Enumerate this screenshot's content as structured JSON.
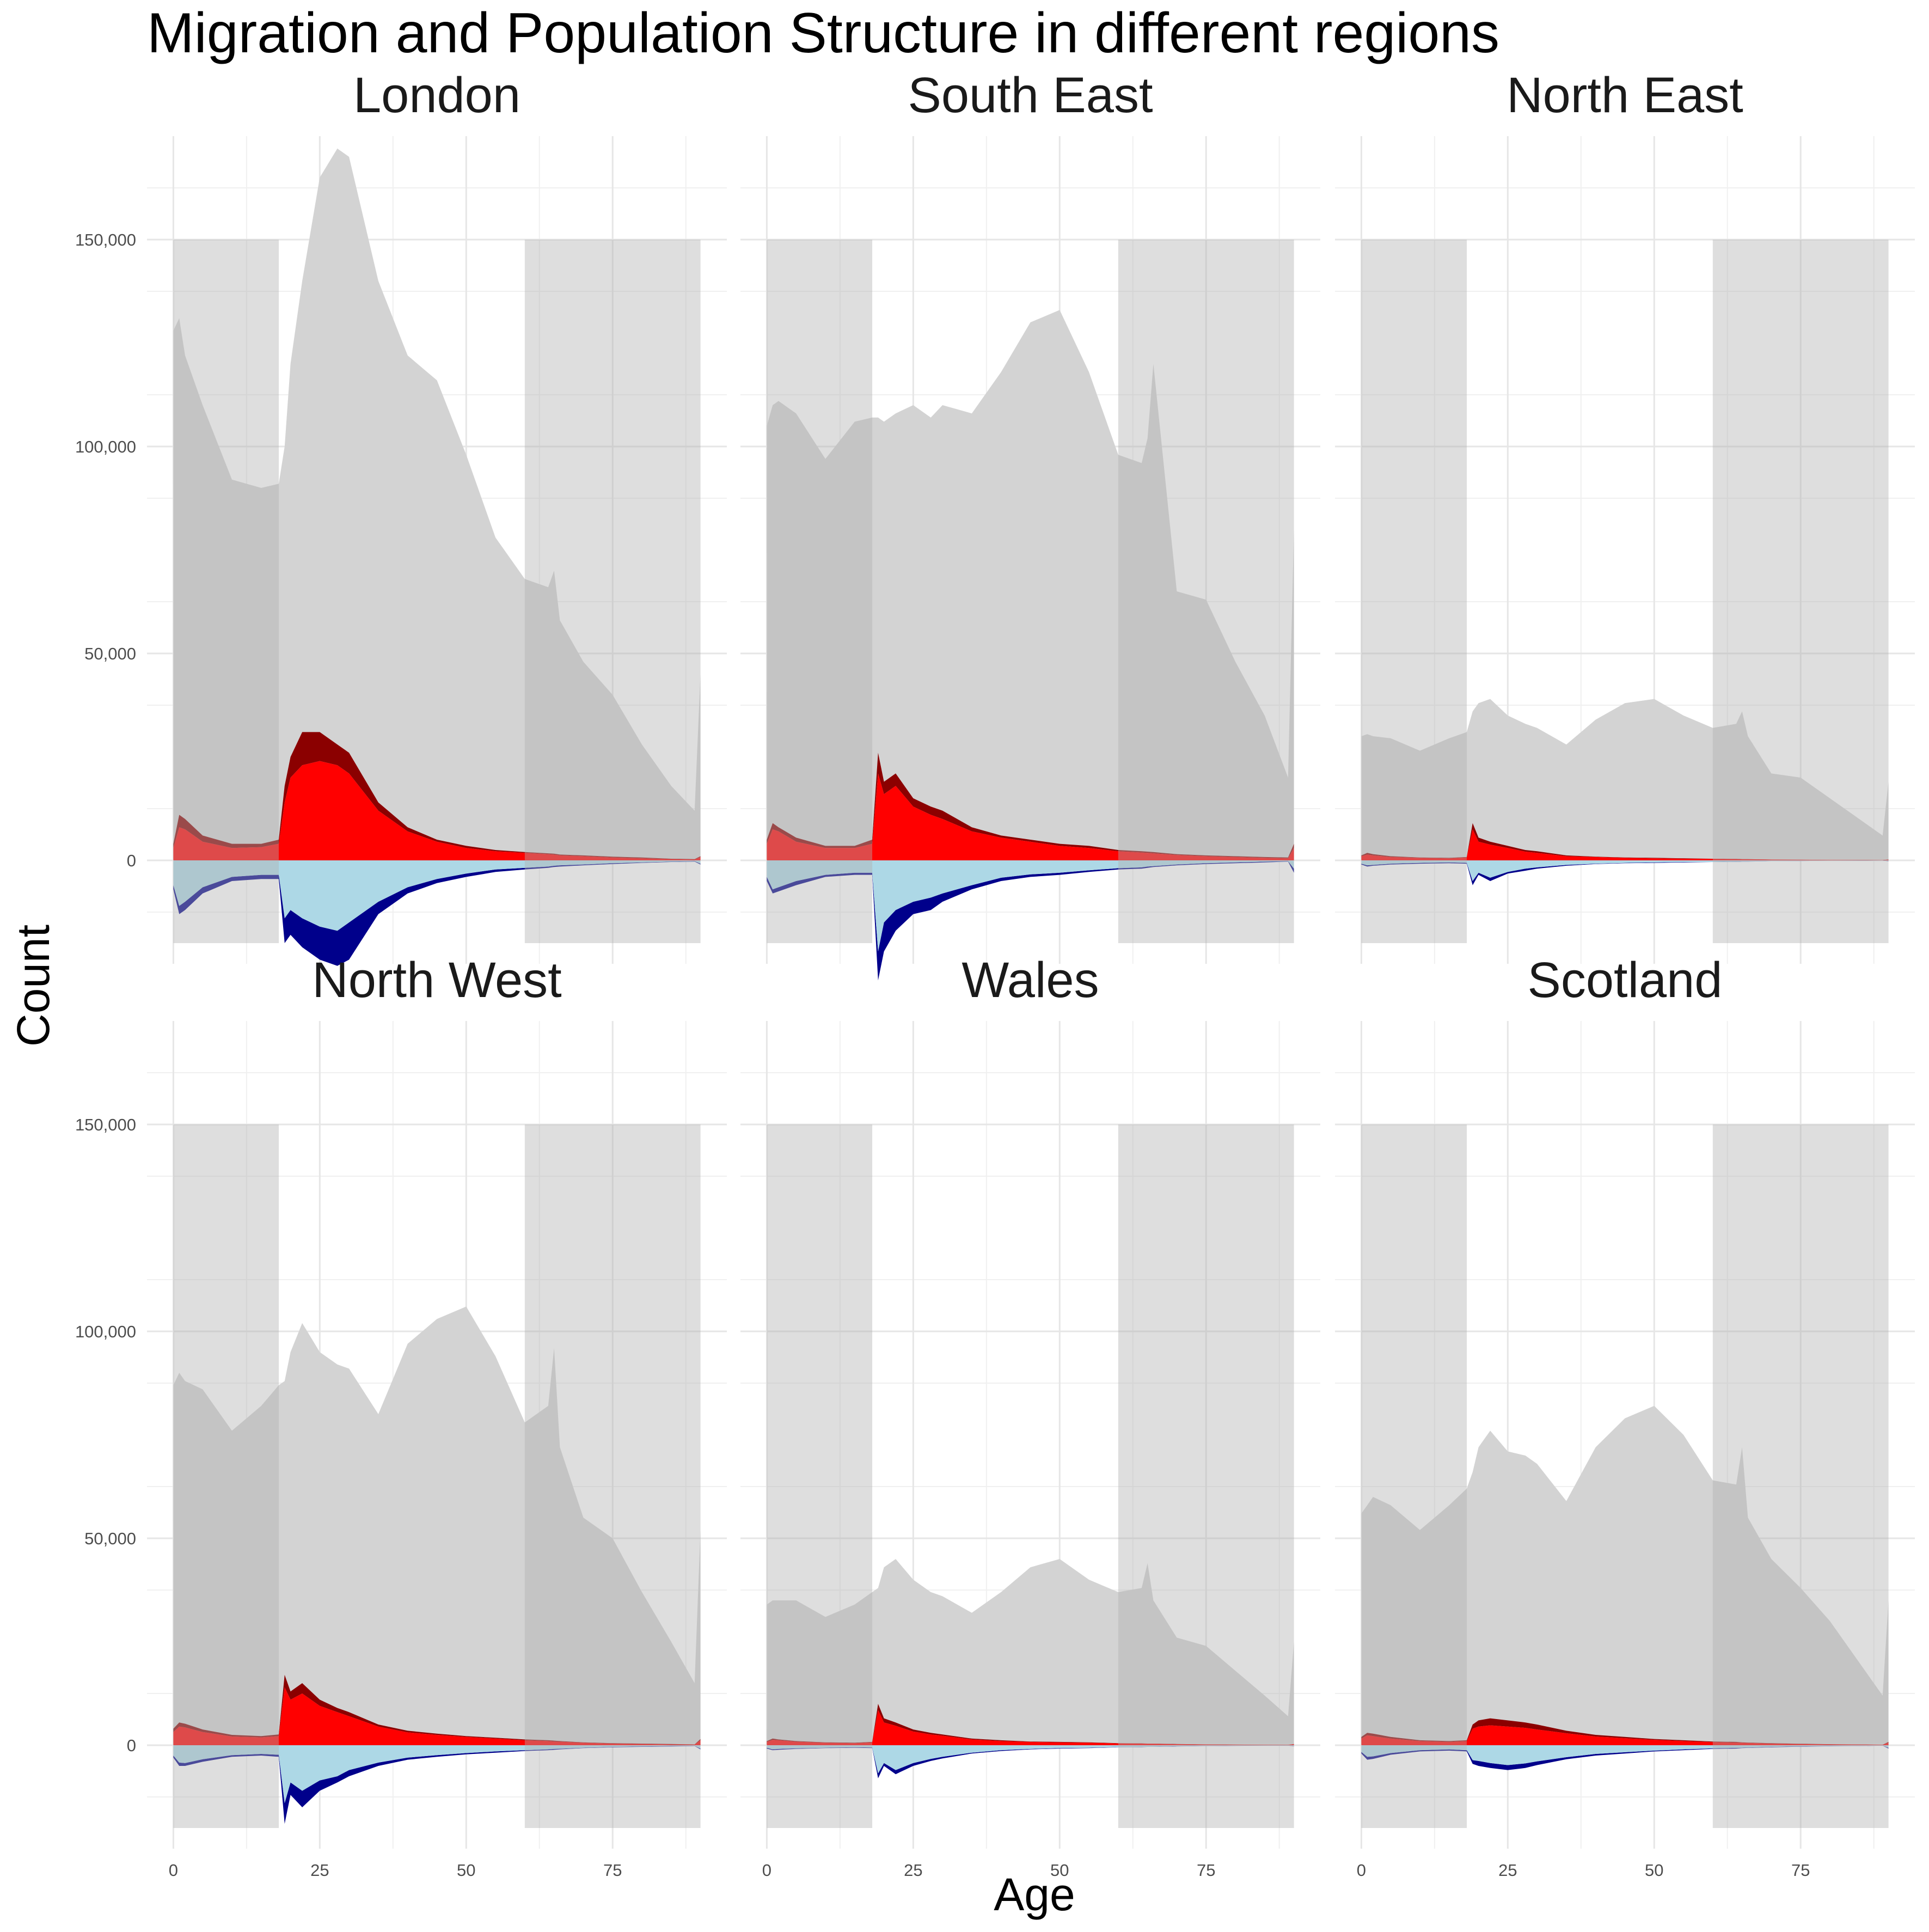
{
  "chart_data": {
    "type": "area",
    "title": "Migration and Population Structure in different regions",
    "xlabel": "Age",
    "ylabel": "Count",
    "xlim": [
      0,
      90
    ],
    "ylim": [
      -25000,
      175000
    ],
    "x_ticks": [
      0,
      25,
      50,
      75
    ],
    "y_ticks": [
      0,
      50000,
      100000,
      150000
    ],
    "y_tick_labels": [
      "0",
      "50,000",
      "100,000",
      "150,000"
    ],
    "grid": true,
    "facet_layout": "3 columns x 2 rows",
    "shaded_age_bands": [
      {
        "from": 0,
        "to": 18,
        "ymin": -20000,
        "ymax": 150000
      },
      {
        "from": 60,
        "to": 90,
        "ymin": -20000,
        "ymax": 150000
      }
    ],
    "colors": {
      "population": "#d3d3d3",
      "band": "#b0b0b0",
      "inflow_total": "#8b0000",
      "inflow_part": "#ff0000",
      "outflow_total": "#00008b",
      "outflow_part": "#add8e6"
    },
    "age_points": [
      0,
      1,
      2,
      5,
      10,
      15,
      18,
      19,
      20,
      22,
      25,
      28,
      30,
      35,
      40,
      45,
      50,
      55,
      60,
      64,
      65,
      66,
      70,
      75,
      80,
      85,
      89,
      90
    ],
    "panels": [
      {
        "name": "London",
        "population": [
          128000,
          131000,
          122000,
          110000,
          92000,
          90000,
          91000,
          100000,
          120000,
          140000,
          165000,
          172000,
          170000,
          140000,
          122000,
          116000,
          98000,
          78000,
          68000,
          66000,
          70000,
          58000,
          48000,
          40000,
          28000,
          18000,
          12000,
          45000
        ],
        "inflow_total": [
          4000,
          11000,
          10000,
          6000,
          4000,
          4000,
          5000,
          18000,
          25000,
          31000,
          31000,
          28000,
          26000,
          14000,
          8000,
          5000,
          3500,
          2500,
          2000,
          1700,
          1600,
          1400,
          1200,
          900,
          700,
          400,
          300,
          1000
        ],
        "inflow_part": [
          3000,
          8000,
          7500,
          4500,
          3000,
          3200,
          4000,
          14000,
          20000,
          23000,
          24000,
          23000,
          21000,
          12000,
          7000,
          4500,
          3000,
          2200,
          1800,
          1500,
          1400,
          1200,
          1000,
          700,
          500,
          300,
          200,
          800
        ],
        "outflow_total": [
          -7000,
          -13000,
          -12000,
          -8000,
          -5000,
          -4500,
          -4500,
          -20000,
          -18000,
          -21000,
          -24000,
          -25500,
          -24000,
          -13000,
          -8000,
          -5500,
          -4000,
          -2800,
          -2200,
          -1800,
          -1600,
          -1500,
          -1200,
          -900,
          -600,
          -400,
          -300,
          -1000
        ],
        "outflow_part": [
          -6000,
          -11000,
          -10000,
          -6500,
          -4000,
          -3500,
          -3500,
          -14000,
          -12000,
          -14000,
          -16000,
          -17000,
          -15000,
          -10000,
          -6500,
          -4500,
          -3200,
          -2200,
          -1800,
          -1500,
          -1300,
          -1200,
          -1000,
          -700,
          -500,
          -300,
          -200,
          -800
        ]
      },
      {
        "name": "South East",
        "population": [
          105000,
          110000,
          111000,
          108000,
          97000,
          106000,
          107000,
          107000,
          106000,
          108000,
          110000,
          107000,
          110000,
          108000,
          118000,
          130000,
          133000,
          118000,
          98000,
          96000,
          102000,
          120000,
          65000,
          63000,
          48000,
          35000,
          20000,
          80000
        ],
        "inflow_total": [
          5000,
          9000,
          8000,
          5500,
          3500,
          3500,
          5000,
          26000,
          19000,
          21000,
          15000,
          13000,
          12000,
          8000,
          6000,
          5000,
          4000,
          3500,
          2500,
          2200,
          2100,
          2000,
          1500,
          1200,
          1000,
          800,
          700,
          4000
        ],
        "inflow_part": [
          4000,
          7500,
          7000,
          4500,
          3000,
          3000,
          4000,
          21000,
          16000,
          18000,
          13000,
          11000,
          10000,
          7000,
          5500,
          4500,
          3500,
          3000,
          2200,
          1900,
          1800,
          1700,
          1300,
          1000,
          800,
          600,
          500,
          3000
        ],
        "outflow_total": [
          -5000,
          -8000,
          -7500,
          -6000,
          -4000,
          -3500,
          -3500,
          -29000,
          -22000,
          -17000,
          -13000,
          -12000,
          -10000,
          -7000,
          -5000,
          -4000,
          -3500,
          -2800,
          -2200,
          -2000,
          -1800,
          -1600,
          -1200,
          -900,
          -700,
          -500,
          -300,
          -3000
        ],
        "outflow_part": [
          -4000,
          -7000,
          -6500,
          -5000,
          -3500,
          -3000,
          -3000,
          -22000,
          -15000,
          -12000,
          -10000,
          -9000,
          -8000,
          -6000,
          -4200,
          -3400,
          -3000,
          -2400,
          -1900,
          -1700,
          -1500,
          -1400,
          -1000,
          -700,
          -500,
          -300,
          -200,
          -2000
        ]
      },
      {
        "name": "North East",
        "population": [
          30000,
          30500,
          30000,
          29500,
          26500,
          29500,
          31000,
          36000,
          38000,
          39000,
          35000,
          33000,
          32000,
          28000,
          34000,
          38000,
          39000,
          35000,
          32000,
          33000,
          36000,
          30000,
          21000,
          20000,
          15000,
          10000,
          6000,
          19000
        ],
        "inflow_total": [
          1200,
          1800,
          1500,
          1000,
          700,
          600,
          800,
          9000,
          5500,
          4500,
          3500,
          2500,
          2200,
          1200,
          900,
          700,
          600,
          500,
          400,
          350,
          300,
          300,
          200,
          150,
          100,
          80,
          60,
          200
        ],
        "inflow_part": [
          1000,
          1400,
          1200,
          800,
          600,
          500,
          700,
          7500,
          4500,
          3800,
          3000,
          2100,
          1800,
          1000,
          800,
          600,
          500,
          400,
          350,
          300,
          250,
          250,
          180,
          130,
          90,
          70,
          50,
          150
        ],
        "outflow_total": [
          -1000,
          -1500,
          -1300,
          -1000,
          -800,
          -700,
          -800,
          -6000,
          -3500,
          -5000,
          -3200,
          -2500,
          -2000,
          -1300,
          -900,
          -700,
          -600,
          -500,
          -400,
          -350,
          -300,
          -300,
          -200,
          -150,
          -100,
          -80,
          -60,
          -200
        ],
        "outflow_part": [
          -800,
          -1200,
          -1100,
          -800,
          -600,
          -500,
          -600,
          -5000,
          -3000,
          -4200,
          -2800,
          -2000,
          -1700,
          -1100,
          -800,
          -600,
          -500,
          -400,
          -350,
          -300,
          -250,
          -250,
          -180,
          -130,
          -90,
          -70,
          -50,
          -150
        ]
      },
      {
        "name": "North West",
        "population": [
          87000,
          90000,
          88000,
          86000,
          76000,
          82000,
          87000,
          88000,
          95000,
          102000,
          95000,
          92000,
          91000,
          80000,
          97000,
          103000,
          106000,
          94000,
          78000,
          82000,
          96000,
          72000,
          55000,
          50000,
          37000,
          25000,
          15000,
          52000
        ],
        "inflow_total": [
          4000,
          5500,
          5200,
          3800,
          2500,
          2200,
          2600,
          17000,
          13000,
          15000,
          11000,
          9000,
          8000,
          5000,
          3500,
          2800,
          2200,
          1800,
          1400,
          1200,
          1100,
          1000,
          700,
          500,
          400,
          300,
          200,
          1500
        ],
        "inflow_part": [
          3200,
          4500,
          4300,
          3200,
          2100,
          1900,
          2200,
          14000,
          11000,
          12500,
          9500,
          8000,
          7000,
          4500,
          3100,
          2500,
          2000,
          1600,
          1200,
          1000,
          900,
          850,
          600,
          400,
          300,
          200,
          150,
          1200
        ],
        "outflow_total": [
          -3000,
          -5000,
          -5000,
          -4000,
          -2800,
          -2500,
          -2800,
          -19000,
          -12000,
          -15000,
          -11000,
          -9000,
          -7500,
          -5000,
          -3500,
          -2800,
          -2200,
          -1800,
          -1400,
          -1200,
          -1100,
          -1000,
          -700,
          -500,
          -400,
          -300,
          -200,
          -1000
        ],
        "outflow_part": [
          -2500,
          -4200,
          -4300,
          -3400,
          -2400,
          -2100,
          -2300,
          -14000,
          -9000,
          -11000,
          -8500,
          -7500,
          -6000,
          -4200,
          -3000,
          -2400,
          -1900,
          -1500,
          -1200,
          -1000,
          -900,
          -850,
          -600,
          -400,
          -300,
          -200,
          -150,
          -800
        ]
      },
      {
        "name": "Wales",
        "population": [
          34000,
          35000,
          35000,
          35000,
          31000,
          34000,
          37000,
          38000,
          43000,
          45000,
          40000,
          37000,
          36000,
          32000,
          37000,
          43000,
          45000,
          40000,
          37000,
          38000,
          44000,
          35000,
          26000,
          24000,
          18000,
          12000,
          7000,
          25000
        ],
        "inflow_total": [
          1000,
          1600,
          1400,
          1000,
          700,
          600,
          800,
          10000,
          6500,
          5500,
          3800,
          3000,
          2600,
          1600,
          1200,
          900,
          800,
          700,
          500,
          450,
          400,
          400,
          300,
          200,
          150,
          100,
          80,
          300
        ],
        "inflow_part": [
          800,
          1300,
          1200,
          850,
          600,
          500,
          700,
          8500,
          5500,
          4700,
          3300,
          2600,
          2300,
          1400,
          1000,
          800,
          700,
          600,
          450,
          400,
          350,
          350,
          250,
          170,
          120,
          80,
          60,
          250
        ],
        "outflow_total": [
          -800,
          -1200,
          -1100,
          -900,
          -700,
          -600,
          -700,
          -8000,
          -5000,
          -7000,
          -5000,
          -3800,
          -3200,
          -2000,
          -1400,
          -1000,
          -800,
          -700,
          -500,
          -450,
          -400,
          -400,
          -300,
          -200,
          -150,
          -100,
          -80,
          -300
        ],
        "outflow_part": [
          -600,
          -1000,
          -900,
          -750,
          -600,
          -500,
          -550,
          -6800,
          -4300,
          -6000,
          -4300,
          -3300,
          -2800,
          -1800,
          -1200,
          -900,
          -700,
          -600,
          -450,
          -400,
          -350,
          -350,
          -250,
          -170,
          -120,
          -80,
          -60,
          -250
        ]
      },
      {
        "name": "Scotland",
        "population": [
          56000,
          58000,
          60000,
          58000,
          52000,
          58000,
          62000,
          66000,
          72000,
          76000,
          71000,
          70000,
          68000,
          59000,
          72000,
          79000,
          82000,
          75000,
          64000,
          63000,
          72000,
          55000,
          45000,
          38000,
          30000,
          20000,
          12000,
          35000
        ],
        "inflow_total": [
          2000,
          3000,
          2800,
          2000,
          1200,
          1000,
          1200,
          5000,
          6000,
          6500,
          6000,
          5500,
          5000,
          3500,
          2500,
          2000,
          1500,
          1200,
          900,
          800,
          700,
          650,
          500,
          350,
          250,
          180,
          120,
          800
        ],
        "inflow_part": [
          1600,
          2400,
          2200,
          1600,
          1000,
          800,
          1000,
          4000,
          4500,
          4800,
          4500,
          4200,
          3800,
          2900,
          2100,
          1700,
          1300,
          1000,
          750,
          650,
          600,
          550,
          400,
          280,
          200,
          140,
          90,
          600
        ],
        "outflow_total": [
          -2000,
          -3500,
          -3300,
          -2300,
          -1500,
          -1300,
          -1500,
          -4500,
          -5000,
          -5500,
          -6000,
          -5500,
          -4800,
          -3400,
          -2500,
          -2000,
          -1500,
          -1200,
          -900,
          -800,
          -700,
          -650,
          -500,
          -350,
          -250,
          -180,
          -120,
          -800
        ],
        "outflow_part": [
          -1600,
          -2800,
          -2700,
          -1900,
          -1200,
          -1000,
          -1200,
          -3600,
          -3800,
          -4300,
          -4800,
          -4400,
          -3900,
          -2900,
          -2100,
          -1700,
          -1300,
          -1000,
          -750,
          -650,
          -600,
          -550,
          -400,
          -280,
          -200,
          -140,
          -90,
          -600
        ]
      }
    ]
  }
}
